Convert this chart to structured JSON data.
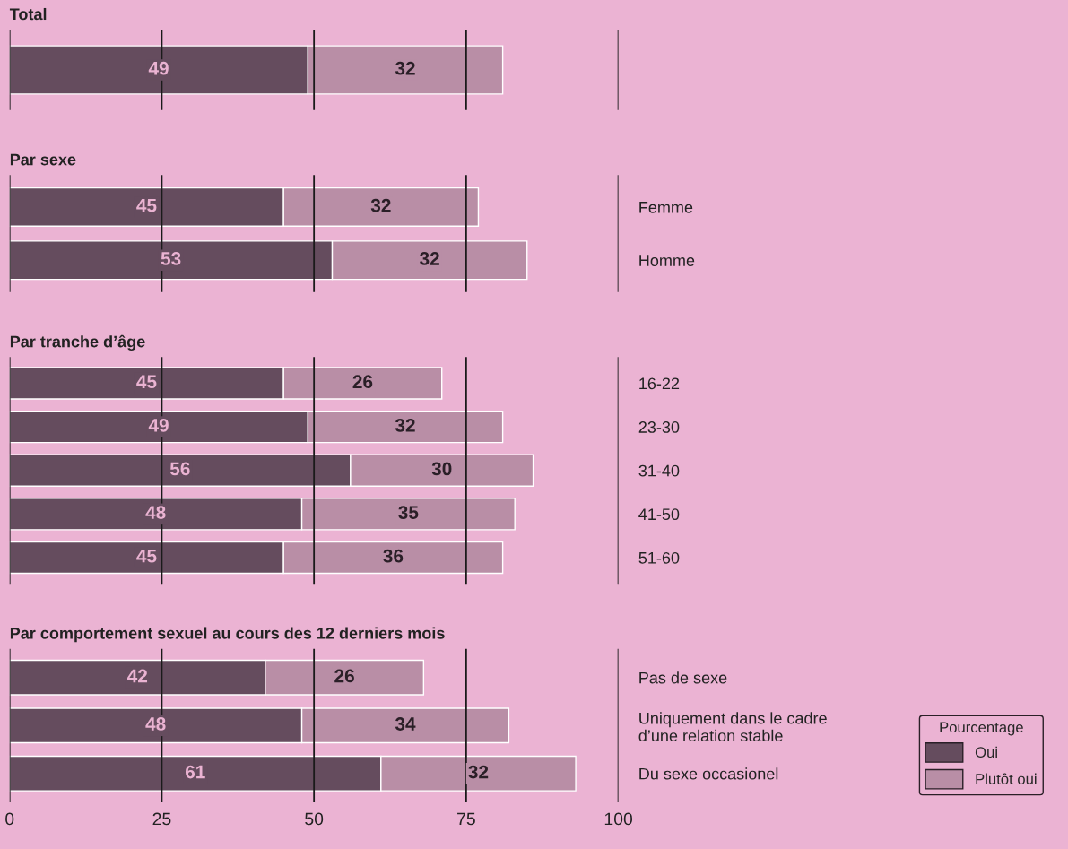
{
  "chart_data": [
    {
      "type": "bar",
      "orientation": "horizontal",
      "stacked": true,
      "title": "Total",
      "categories": [
        null
      ],
      "xlim": [
        0,
        100
      ],
      "xticks": [
        0,
        25,
        50,
        75,
        100
      ],
      "grid": "x",
      "tick_labels": "y",
      "data_labels": true,
      "series": [
        {
          "color": "#654c5e",
          "values": [
            49
          ]
        },
        {
          "color": "#b98ea6",
          "values": [
            32
          ]
        }
      ]
    },
    {
      "type": "bar",
      "orientation": "horizontal",
      "stacked": true,
      "title": "Par sexe",
      "categories": [
        "Femme",
        "Homme"
      ],
      "xlim": [
        0,
        100
      ],
      "xticks": [
        0,
        25,
        50,
        75,
        100
      ],
      "grid": "x",
      "tick_labels": "y",
      "data_labels": true,
      "series": [
        {
          "color": "#654c5e",
          "values": [
            45,
            53
          ]
        },
        {
          "color": "#b98ea6",
          "values": [
            32,
            32
          ]
        }
      ]
    },
    {
      "type": "bar",
      "orientation": "horizontal",
      "stacked": true,
      "title": "Par tranche d’âge",
      "categories": [
        "16-22",
        "23-30",
        "31-40",
        "41-50",
        "51-60"
      ],
      "xlim": [
        0,
        100
      ],
      "xticks": [
        0,
        25,
        50,
        75,
        100
      ],
      "grid": "x",
      "tick_labels": "y",
      "data_labels": true,
      "series": [
        {
          "color": "#654c5e",
          "values": [
            45,
            49,
            56,
            48,
            45
          ]
        },
        {
          "color": "#b98ea6",
          "values": [
            26,
            32,
            30,
            35,
            36
          ]
        }
      ]
    },
    {
      "type": "bar",
      "orientation": "horizontal",
      "stacked": true,
      "title": "Par comportement sexuel au cours des 12 derniers mois",
      "categories": [
        "Pas de sexe",
        "Uniquement dans le cadre\nd’une relation stable",
        "Du sexe occasionel"
      ],
      "xlim": [
        0,
        100
      ],
      "xticks": [
        0,
        25,
        50,
        75,
        100
      ],
      "grid": "x",
      "data_labels": true,
      "legend": "bottom right",
      "legend_title": "Pourcentage",
      "series": [
        {
          "name": "Oui",
          "color": "#654c5e",
          "values": [
            42,
            48,
            61
          ]
        },
        {
          "name": "Plutôt oui",
          "color": "#b98ea6",
          "values": [
            26,
            34,
            32
          ]
        }
      ]
    }
  ]
}
